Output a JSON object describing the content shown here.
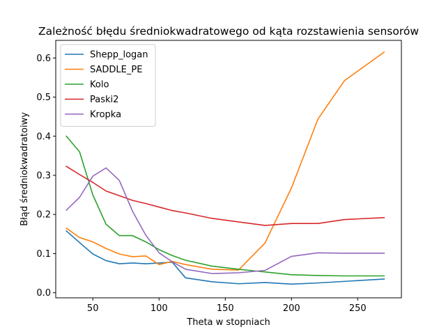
{
  "chart_data": {
    "type": "line",
    "title": "Zależność błędu średniokwadratowego od kąta rozstawienia sensorów",
    "xlabel": "Theta w stopniach",
    "ylabel": "Błąd średniokwadratoiwy",
    "xlim": [
      22,
      283
    ],
    "ylim": [
      -0.013,
      0.645
    ],
    "xticks": [
      50,
      100,
      150,
      200,
      250
    ],
    "yticks": [
      0.0,
      0.1,
      0.2,
      0.3,
      0.4,
      0.5,
      0.6
    ],
    "xtick_labels": [
      "50",
      "100",
      "150",
      "200",
      "250"
    ],
    "ytick_labels": [
      "0.0",
      "0.1",
      "0.2",
      "0.3",
      "0.4",
      "0.5",
      "0.6"
    ],
    "grid": false,
    "legend_position": "upper-left",
    "series": [
      {
        "name": "Shepp_logan",
        "color": "#1f77b4",
        "x": [
          30,
          40,
          50,
          60,
          70,
          80,
          90,
          100,
          110,
          120,
          140,
          160,
          180,
          200,
          220,
          240,
          270
        ],
        "y": [
          0.158,
          0.128,
          0.099,
          0.082,
          0.074,
          0.076,
          0.074,
          0.076,
          0.078,
          0.038,
          0.028,
          0.023,
          0.026,
          0.022,
          0.025,
          0.029,
          0.035
        ]
      },
      {
        "name": "SADDLE_PE",
        "color": "#ff7f0e",
        "x": [
          30,
          40,
          50,
          60,
          70,
          80,
          90,
          100,
          110,
          120,
          140,
          160,
          180,
          200,
          220,
          240,
          270
        ],
        "y": [
          0.165,
          0.141,
          0.13,
          0.113,
          0.099,
          0.092,
          0.094,
          0.072,
          0.08,
          0.072,
          0.06,
          0.058,
          0.127,
          0.268,
          0.444,
          0.542,
          0.615
        ]
      },
      {
        "name": "Kolo",
        "color": "#2ca02c",
        "x": [
          30,
          40,
          50,
          60,
          70,
          80,
          90,
          100,
          110,
          120,
          140,
          160,
          180,
          200,
          220,
          240,
          270
        ],
        "y": [
          0.4,
          0.36,
          0.25,
          0.175,
          0.146,
          0.146,
          0.13,
          0.11,
          0.095,
          0.083,
          0.068,
          0.06,
          0.053,
          0.046,
          0.044,
          0.043,
          0.043
        ]
      },
      {
        "name": "Paski2",
        "color": "#d62728",
        "x": [
          30,
          40,
          50,
          60,
          70,
          80,
          90,
          100,
          110,
          120,
          140,
          160,
          180,
          200,
          220,
          240,
          270
        ],
        "y": [
          0.323,
          0.302,
          0.282,
          0.26,
          0.248,
          0.236,
          0.228,
          0.219,
          0.21,
          0.204,
          0.19,
          0.181,
          0.172,
          0.177,
          0.177,
          0.187,
          0.192
        ]
      },
      {
        "name": "Kropka",
        "color": "#9467bd",
        "x": [
          30,
          40,
          50,
          60,
          70,
          80,
          90,
          100,
          110,
          120,
          140,
          160,
          180,
          200,
          220,
          240,
          270
        ],
        "y": [
          0.211,
          0.244,
          0.298,
          0.319,
          0.287,
          0.208,
          0.147,
          0.102,
          0.079,
          0.06,
          0.049,
          0.051,
          0.057,
          0.093,
          0.102,
          0.101,
          0.101
        ]
      }
    ]
  }
}
